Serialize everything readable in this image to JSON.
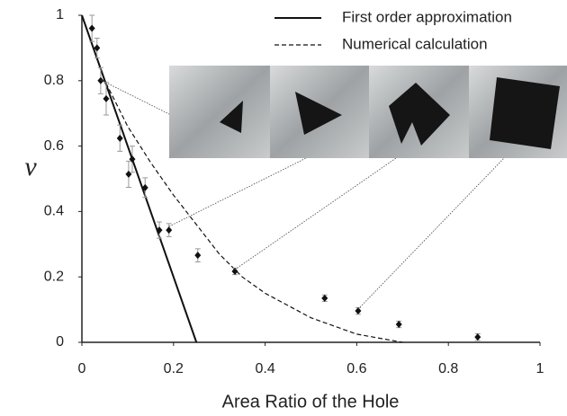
{
  "chart_data": {
    "type": "scatter",
    "x_label": "Area Ratio of the Hole",
    "y_label": "ν",
    "xlim": [
      0,
      1
    ],
    "ylim": [
      0,
      1
    ],
    "xticks": [
      0,
      0.2,
      0.4,
      0.6,
      0.8,
      1
    ],
    "yticks": [
      0,
      0.2,
      0.4,
      0.6,
      0.8,
      1
    ],
    "grid": false,
    "legend": "top-right",
    "series": [
      {
        "name": "First order approximation",
        "type": "line",
        "dashed": false,
        "color": "#111111",
        "x": [
          0,
          0.25
        ],
        "values": [
          1,
          0
        ]
      },
      {
        "name": "Numerical calculation",
        "type": "line",
        "dashed": true,
        "color": "#111111",
        "x": [
          0,
          0.05,
          0.1,
          0.15,
          0.2,
          0.25,
          0.3,
          0.35,
          0.4,
          0.5,
          0.6,
          0.7
        ],
        "values": [
          1,
          0.8,
          0.66,
          0.55,
          0.45,
          0.36,
          0.27,
          0.2,
          0.15,
          0.075,
          0.025,
          0
        ]
      },
      {
        "type": "scatter",
        "color": "#111111",
        "x": [
          0.022,
          0.033,
          0.041,
          0.053,
          0.083,
          0.102,
          0.11,
          0.138,
          0.169,
          0.19,
          0.253,
          0.334,
          0.53,
          0.603,
          0.692,
          0.864
        ],
        "values": [
          0.96,
          0.9,
          0.8,
          0.745,
          0.624,
          0.514,
          0.56,
          0.473,
          0.343,
          0.343,
          0.266,
          0.217,
          0.135,
          0.096,
          0.055,
          0.016
        ],
        "errors": [
          0.04,
          0.03,
          0.04,
          0.05,
          0.04,
          0.04,
          0.04,
          0.03,
          0.025,
          0.02,
          0.02,
          0.01,
          0.01,
          0.01,
          0.01,
          0.01
        ]
      }
    ]
  }
}
